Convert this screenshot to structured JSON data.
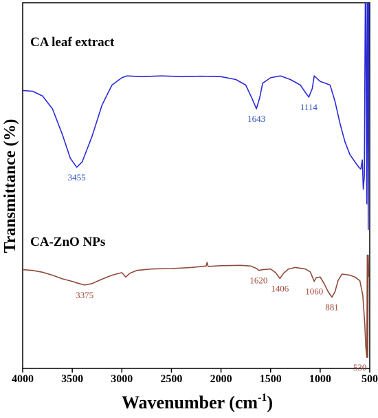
{
  "chart_data": {
    "type": "line",
    "xlabel": "Wavenumber (cm",
    "xlabel_sup": "-1",
    "xlabel_end": ")",
    "ylabel": "Transmittance  (%)",
    "xlim": [
      4000,
      500
    ],
    "x_ticks": [
      4000,
      3500,
      3000,
      2500,
      2000,
      1500,
      1000,
      500
    ],
    "y_ticks": false,
    "grid": false,
    "series": [
      {
        "name": "CA leaf extract",
        "color": "#2b2bd6",
        "label_color": "#2b4fbf",
        "points": [
          [
            4000,
            0.76
          ],
          [
            3900,
            0.758
          ],
          [
            3800,
            0.745
          ],
          [
            3700,
            0.71
          ],
          [
            3600,
            0.64
          ],
          [
            3520,
            0.575
          ],
          [
            3455,
            0.55
          ],
          [
            3400,
            0.565
          ],
          [
            3300,
            0.635
          ],
          [
            3200,
            0.72
          ],
          [
            3100,
            0.775
          ],
          [
            3000,
            0.795
          ],
          [
            2950,
            0.8
          ],
          [
            2800,
            0.798
          ],
          [
            2600,
            0.8
          ],
          [
            2400,
            0.798
          ],
          [
            2200,
            0.799
          ],
          [
            2000,
            0.798
          ],
          [
            1850,
            0.79
          ],
          [
            1750,
            0.775
          ],
          [
            1690,
            0.74
          ],
          [
            1643,
            0.71
          ],
          [
            1610,
            0.74
          ],
          [
            1580,
            0.78
          ],
          [
            1500,
            0.795
          ],
          [
            1400,
            0.8
          ],
          [
            1300,
            0.79
          ],
          [
            1200,
            0.775
          ],
          [
            1150,
            0.755
          ],
          [
            1114,
            0.742
          ],
          [
            1080,
            0.765
          ],
          [
            1060,
            0.8
          ],
          [
            1040,
            0.795
          ],
          [
            1000,
            0.785
          ],
          [
            950,
            0.78
          ],
          [
            900,
            0.775
          ],
          [
            850,
            0.73
          ],
          [
            800,
            0.67
          ],
          [
            750,
            0.62
          ],
          [
            700,
            0.585
          ],
          [
            650,
            0.565
          ],
          [
            610,
            0.55
          ],
          [
            590,
            0.545
          ],
          [
            575,
            0.57
          ],
          [
            565,
            0.49
          ],
          [
            555,
            0.525
          ],
          [
            545,
            1.0
          ],
          [
            540,
            1.0
          ],
          [
            530,
            0.45
          ],
          [
            525,
            1.0
          ],
          [
            520,
            1.0
          ],
          [
            515,
            0.38
          ],
          [
            508,
            1.0
          ]
        ],
        "peaks": [
          {
            "x": 3455,
            "label": "3455"
          },
          {
            "x": 1643,
            "label": "1643"
          },
          {
            "x": 1114,
            "label": "1114"
          }
        ]
      },
      {
        "name": "CA-ZnO NPs",
        "color": "#8e4a3a",
        "label_color": "#a04a3a",
        "points": [
          [
            4000,
            0.27
          ],
          [
            3900,
            0.268
          ],
          [
            3800,
            0.263
          ],
          [
            3700,
            0.255
          ],
          [
            3600,
            0.245
          ],
          [
            3500,
            0.238
          ],
          [
            3430,
            0.232
          ],
          [
            3375,
            0.228
          ],
          [
            3300,
            0.232
          ],
          [
            3200,
            0.244
          ],
          [
            3100,
            0.255
          ],
          [
            3000,
            0.262
          ],
          [
            2960,
            0.25
          ],
          [
            2920,
            0.26
          ],
          [
            2850,
            0.268
          ],
          [
            2700,
            0.272
          ],
          [
            2500,
            0.273
          ],
          [
            2300,
            0.276
          ],
          [
            2150,
            0.28
          ],
          [
            2140,
            0.29
          ],
          [
            2130,
            0.279
          ],
          [
            2000,
            0.281
          ],
          [
            1800,
            0.282
          ],
          [
            1700,
            0.28
          ],
          [
            1640,
            0.273
          ],
          [
            1620,
            0.268
          ],
          [
            1580,
            0.27
          ],
          [
            1500,
            0.272
          ],
          [
            1450,
            0.262
          ],
          [
            1406,
            0.246
          ],
          [
            1370,
            0.26
          ],
          [
            1320,
            0.272
          ],
          [
            1250,
            0.276
          ],
          [
            1150,
            0.272
          ],
          [
            1100,
            0.264
          ],
          [
            1060,
            0.238
          ],
          [
            1040,
            0.248
          ],
          [
            1000,
            0.25
          ],
          [
            960,
            0.232
          ],
          [
            920,
            0.21
          ],
          [
            881,
            0.195
          ],
          [
            850,
            0.21
          ],
          [
            820,
            0.24
          ],
          [
            780,
            0.258
          ],
          [
            700,
            0.255
          ],
          [
            650,
            0.25
          ],
          [
            600,
            0.24
          ],
          [
            570,
            0.2
          ],
          [
            550,
            0.12
          ],
          [
            540,
            0.06
          ],
          [
            530,
            0.03
          ],
          [
            525,
            0.31
          ],
          [
            520,
            0.03
          ],
          [
            515,
            0.31
          ],
          [
            510,
            0.25
          ]
        ],
        "peaks": [
          {
            "x": 3375,
            "label": "3375"
          },
          {
            "x": 1620,
            "label": "1620"
          },
          {
            "x": 1406,
            "label": "1406"
          },
          {
            "x": 1060,
            "label": "1060"
          },
          {
            "x": 881,
            "label": "881"
          },
          {
            "x": 530,
            "label": "530"
          }
        ]
      }
    ]
  }
}
